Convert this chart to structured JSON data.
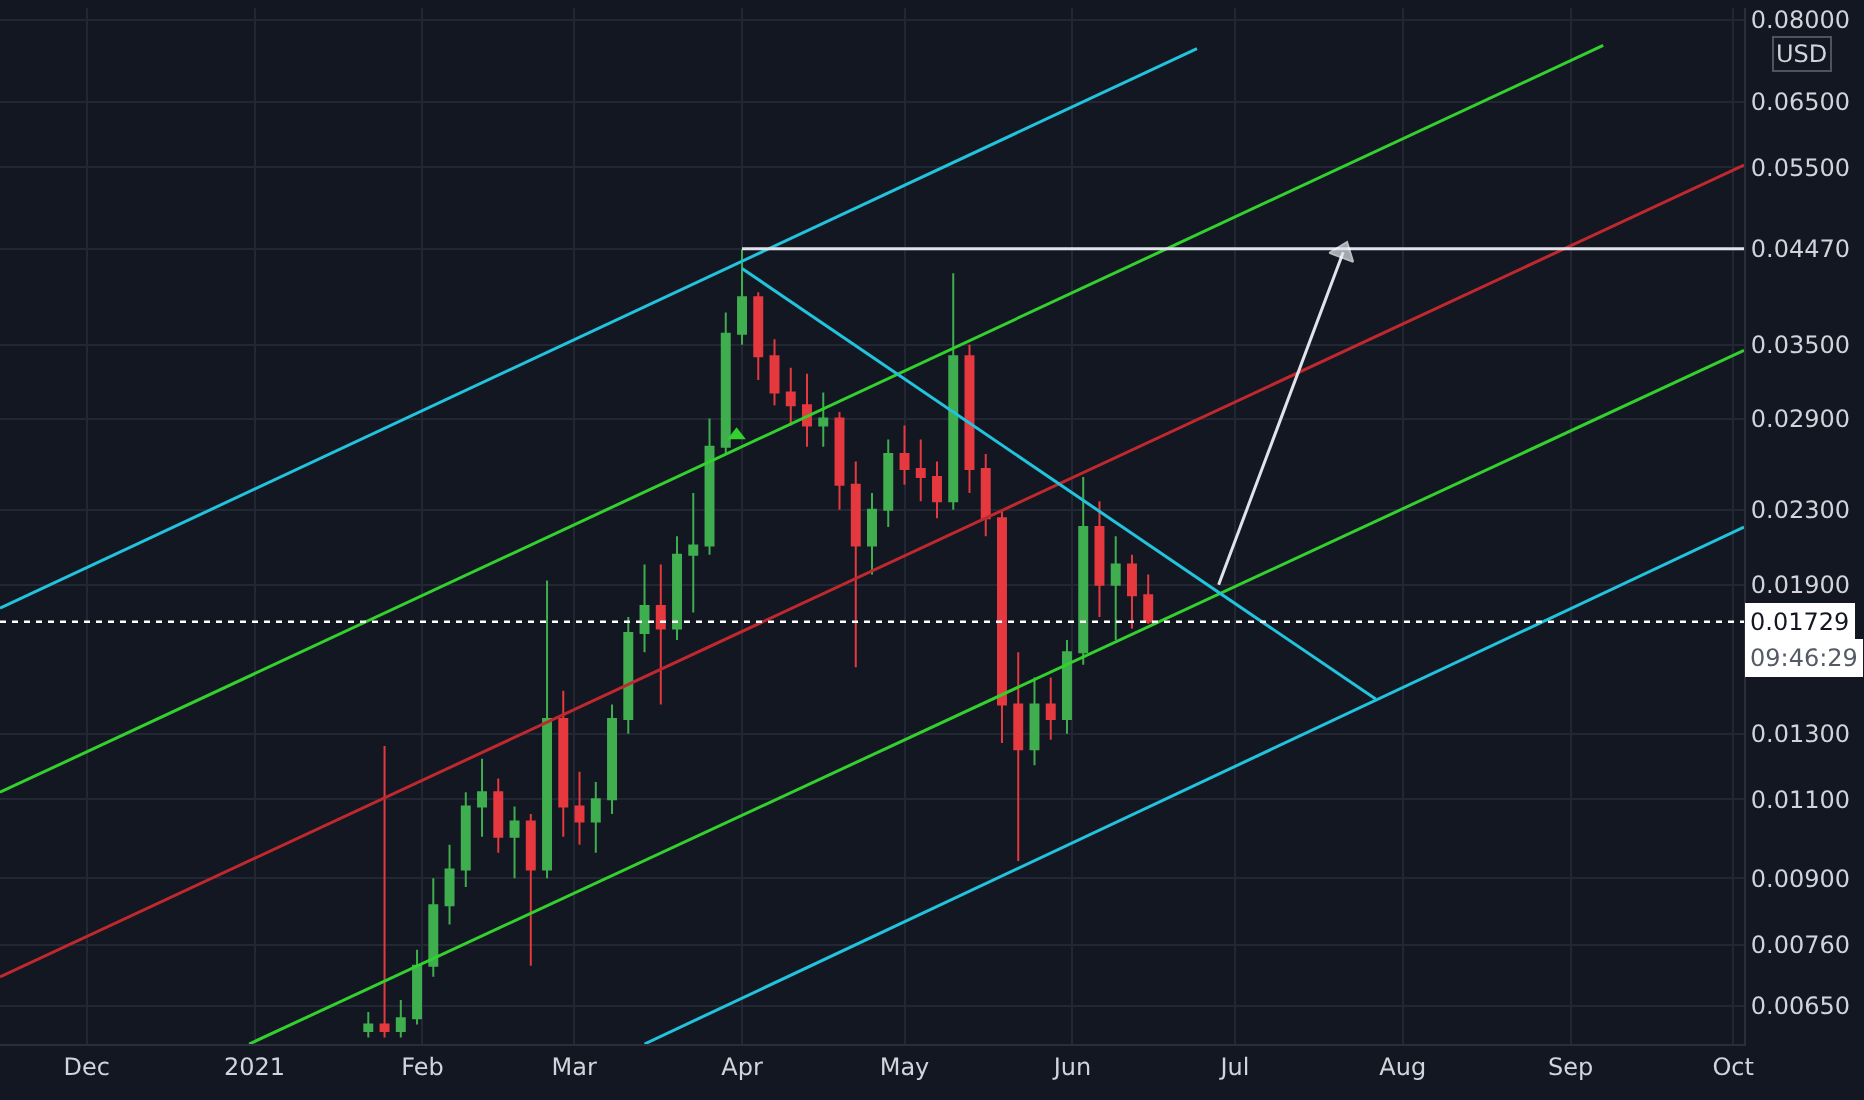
{
  "chart_data": {
    "type": "candlestick",
    "ylabel": "USD",
    "log": true,
    "grid": true,
    "legend": false,
    "x": [
      "2021-01-22",
      "2021-01-25",
      "2021-01-28",
      "2021-01-31",
      "2021-02-03",
      "2021-02-06",
      "2021-02-09",
      "2021-02-12",
      "2021-02-15",
      "2021-02-18",
      "2021-02-21",
      "2021-02-24",
      "2021-02-27",
      "2021-03-02",
      "2021-03-05",
      "2021-03-08",
      "2021-03-11",
      "2021-03-14",
      "2021-03-17",
      "2021-03-20",
      "2021-03-23",
      "2021-03-26",
      "2021-03-29",
      "2021-04-01",
      "2021-04-04",
      "2021-04-07",
      "2021-04-10",
      "2021-04-13",
      "2021-04-16",
      "2021-04-19",
      "2021-04-22",
      "2021-04-25",
      "2021-04-28",
      "2021-05-01",
      "2021-05-04",
      "2021-05-07",
      "2021-05-10",
      "2021-05-13",
      "2021-05-16",
      "2021-05-19",
      "2021-05-22",
      "2021-05-25",
      "2021-05-28",
      "2021-05-31",
      "2021-06-03",
      "2021-06-06",
      "2021-06-09",
      "2021-06-12",
      "2021-06-15"
    ],
    "ohlc": [
      [
        0.0061,
        0.0064,
        0.006,
        0.0062
      ],
      [
        0.0062,
        0.0126,
        0.006,
        0.0061
      ],
      [
        0.0061,
        0.0066,
        0.006,
        0.0063
      ],
      [
        0.0063,
        0.0075,
        0.0062,
        0.0072
      ],
      [
        0.0072,
        0.009,
        0.007,
        0.0084
      ],
      [
        0.0084,
        0.0098,
        0.008,
        0.0092
      ],
      [
        0.0092,
        0.0112,
        0.0088,
        0.0108
      ],
      [
        0.0108,
        0.0122,
        0.01,
        0.0112
      ],
      [
        0.0112,
        0.0116,
        0.0096,
        0.01
      ],
      [
        0.01,
        0.0108,
        0.009,
        0.0104
      ],
      [
        0.0104,
        0.0106,
        0.0072,
        0.0092
      ],
      [
        0.0092,
        0.0192,
        0.009,
        0.0135
      ],
      [
        0.0135,
        0.0145,
        0.01,
        0.0108
      ],
      [
        0.0108,
        0.0118,
        0.0098,
        0.0104
      ],
      [
        0.0104,
        0.0115,
        0.0096,
        0.011
      ],
      [
        0.011,
        0.014,
        0.0106,
        0.0135
      ],
      [
        0.0135,
        0.0175,
        0.013,
        0.0168
      ],
      [
        0.0168,
        0.02,
        0.016,
        0.018
      ],
      [
        0.018,
        0.02,
        0.014,
        0.017
      ],
      [
        0.017,
        0.0215,
        0.0165,
        0.0205
      ],
      [
        0.0205,
        0.024,
        0.0177,
        0.021
      ],
      [
        0.021,
        0.029,
        0.0205,
        0.027
      ],
      [
        0.027,
        0.038,
        0.0265,
        0.036
      ],
      [
        0.036,
        0.0446,
        0.035,
        0.0395
      ],
      [
        0.0395,
        0.04,
        0.032,
        0.034
      ],
      [
        0.034,
        0.0355,
        0.03,
        0.031
      ],
      [
        0.031,
        0.033,
        0.0285,
        0.03
      ],
      [
        0.03,
        0.0325,
        0.027,
        0.0285
      ],
      [
        0.0285,
        0.031,
        0.027,
        0.029
      ],
      [
        0.029,
        0.0295,
        0.023,
        0.0245
      ],
      [
        0.0245,
        0.026,
        0.0154,
        0.021
      ],
      [
        0.021,
        0.024,
        0.0195,
        0.023
      ],
      [
        0.023,
        0.0275,
        0.022,
        0.0265
      ],
      [
        0.0265,
        0.0285,
        0.0245,
        0.0255
      ],
      [
        0.0255,
        0.0275,
        0.0235,
        0.025
      ],
      [
        0.025,
        0.026,
        0.0225,
        0.0235
      ],
      [
        0.0235,
        0.042,
        0.023,
        0.034
      ],
      [
        0.034,
        0.035,
        0.024,
        0.0255
      ],
      [
        0.0255,
        0.0265,
        0.0215,
        0.0225
      ],
      [
        0.0225,
        0.023,
        0.0127,
        0.014
      ],
      [
        0.014,
        0.016,
        0.0094,
        0.0125
      ],
      [
        0.0125,
        0.015,
        0.012,
        0.014
      ],
      [
        0.014,
        0.015,
        0.0128,
        0.0135
      ],
      [
        0.0135,
        0.0165,
        0.013,
        0.016
      ],
      [
        0.016,
        0.025,
        0.0155,
        0.022
      ],
      [
        0.022,
        0.0235,
        0.0175,
        0.019
      ],
      [
        0.019,
        0.0215,
        0.0165,
        0.02
      ],
      [
        0.02,
        0.0205,
        0.017,
        0.0185
      ],
      [
        0.0185,
        0.0195,
        0.0172,
        0.01729
      ]
    ],
    "colors": [
      "#3fae4f",
      "#e5393f",
      "#3fae4f",
      "#3fae4f",
      "#3fae4f",
      "#3fae4f",
      "#3fae4f",
      "#3fae4f",
      "#e5393f",
      "#3fae4f",
      "#e5393f",
      "#3fae4f",
      "#e5393f",
      "#e5393f",
      "#3fae4f",
      "#3fae4f",
      "#3fae4f",
      "#3fae4f",
      "#e5393f",
      "#3fae4f",
      "#3fae4f",
      "#3fae4f",
      "#3fae4f",
      "#3fae4f",
      "#e5393f",
      "#e5393f",
      "#e5393f",
      "#e5393f",
      "#3fae4f",
      "#e5393f",
      "#e5393f",
      "#3fae4f",
      "#3fae4f",
      "#e5393f",
      "#e5393f",
      "#e5393f",
      "#3fae4f",
      "#e5393f",
      "#e5393f",
      "#e5393f",
      "#e5393f",
      "#3fae4f",
      "#e5393f",
      "#3fae4f",
      "#3fae4f",
      "#e5393f",
      "#3fae4f",
      "#e5393f",
      "#e5393f"
    ],
    "series": [
      {
        "type": "line",
        "color": "#22c3dc",
        "x": [
          "2020-11-15",
          "2021-06-24"
        ],
        "values": [
          0.0179,
          0.0744
        ]
      },
      {
        "type": "line",
        "color": "#33d12e",
        "x": [
          "2020-11-15",
          "2021-09-07"
        ],
        "values": [
          0.0112,
          0.075
        ]
      },
      {
        "type": "line",
        "color": "#c0282f",
        "x": [
          "2020-11-15",
          "2021-10-03"
        ],
        "values": [
          0.007,
          0.0553
        ]
      },
      {
        "type": "line",
        "color": "#33d12e",
        "x": [
          "2020-12-31",
          "2021-10-03"
        ],
        "values": [
          0.0059,
          0.0345
        ]
      },
      {
        "type": "line",
        "color": "#22c3dc",
        "x": [
          "2021-03-14",
          "2021-10-03"
        ],
        "values": [
          0.0059,
          0.022
        ]
      },
      {
        "type": "line",
        "color": "#22c3dc",
        "x": [
          "2021-04-01",
          "2021-07-27"
        ],
        "values": [
          0.0425,
          0.0142
        ]
      },
      {
        "type": "line",
        "color": "#e0e3eb",
        "x": [
          "2021-04-01",
          "2021-10-03"
        ],
        "values": [
          0.0447,
          0.0447
        ]
      },
      {
        "type": "line",
        "color": "#e0e3eb",
        "marker": "triangle",
        "x": [
          "2021-06-28",
          "2021-07-21"
        ],
        "values": [
          0.019,
          0.0443
        ]
      },
      {
        "type": "scatter",
        "color": "#33d12e",
        "marker": "triangle",
        "x": [
          "2021-03-31"
        ],
        "values": [
          0.0278
        ]
      }
    ],
    "ref_lines": [
      {
        "axis": "y",
        "value": 0.01729,
        "label": "0.01729",
        "color": "#ffffff",
        "line_style": "dotted"
      }
    ],
    "annotations": [
      "09:46:29"
    ],
    "xlim": [
      "2020-11-15",
      "2021-10-03"
    ],
    "xticks": [
      {
        "value": "2020-12-01",
        "label": "Dec"
      },
      {
        "value": "2021-01-01",
        "label": "2021"
      },
      {
        "value": "2021-02-01",
        "label": "Feb"
      },
      {
        "value": "2021-03-01",
        "label": "Mar"
      },
      {
        "value": "2021-04-01",
        "label": "Apr"
      },
      {
        "value": "2021-05-01",
        "label": "May"
      },
      {
        "value": "2021-06-01",
        "label": "Jun"
      },
      {
        "value": "2021-07-01",
        "label": "Jul"
      },
      {
        "value": "2021-08-01",
        "label": "Aug"
      },
      {
        "value": "2021-09-01",
        "label": "Sep"
      },
      {
        "value": "2021-10-01",
        "label": "Oct"
      }
    ],
    "ylim": [
      0.0059,
      0.0825
    ],
    "yticks": [
      {
        "value": 0.08,
        "label": "0.08000"
      },
      {
        "value": 0.065,
        "label": "0.06500"
      },
      {
        "value": 0.055,
        "label": "0.05500"
      },
      {
        "value": 0.0447,
        "label": "0.04470"
      },
      {
        "value": 0.035,
        "label": "0.03500"
      },
      {
        "value": 0.029,
        "label": "0.02900"
      },
      {
        "value": 0.023,
        "label": "0.02300"
      },
      {
        "value": 0.019,
        "label": "0.01900"
      },
      {
        "value": 0.013,
        "label": "0.01300"
      },
      {
        "value": 0.011,
        "label": "0.01100"
      },
      {
        "value": 0.009,
        "label": "0.00900"
      },
      {
        "value": 0.0076,
        "label": "0.00760"
      },
      {
        "value": 0.0065,
        "label": "0.00650"
      }
    ]
  }
}
